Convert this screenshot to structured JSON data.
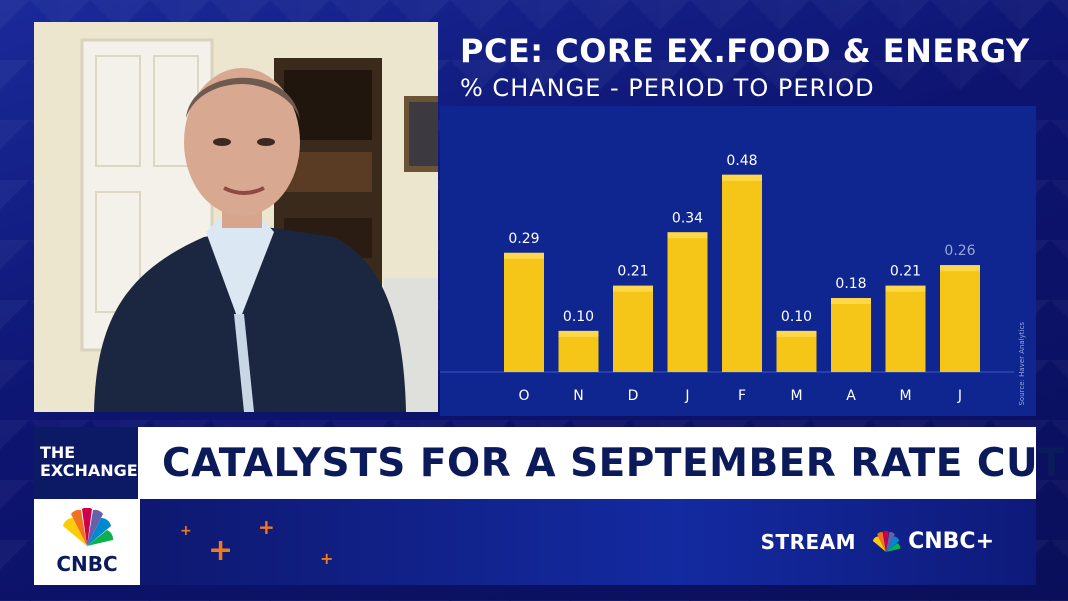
{
  "chart": {
    "title": "PCE: CORE EX.FOOD & ENERGY",
    "subtitle": "% CHANGE - PERIOD TO PERIOD",
    "source": "Source: Haver Analytics"
  },
  "chart_data": {
    "type": "bar",
    "title": "PCE: CORE EX.FOOD & ENERGY",
    "subtitle": "% CHANGE - PERIOD TO PERIOD",
    "categories": [
      "O",
      "N",
      "D",
      "J",
      "F",
      "M",
      "A",
      "M",
      "J"
    ],
    "values": [
      0.29,
      0.1,
      0.21,
      0.34,
      0.48,
      0.1,
      0.18,
      0.21,
      0.26
    ],
    "value_labels": [
      "0.29",
      "0.10",
      "0.21",
      "0.34",
      "0.48",
      "0.10",
      "0.18",
      "0.21",
      "0.26"
    ],
    "xlabel": "",
    "ylabel": "",
    "ylim": [
      0,
      0.55
    ],
    "grid": false,
    "bar_color": "#f5c518",
    "label_colors": [
      "#ffffff",
      "#ffffff",
      "#ffffff",
      "#ffffff",
      "#ffffff",
      "#ffffff",
      "#ffffff",
      "#ffffff",
      "#9aa7d8"
    ]
  },
  "lower_third": {
    "show_line1": "THE",
    "show_line2": "EXCHANGE",
    "headline": "CATALYSTS FOR A SEPTEMBER RATE CUT"
  },
  "branding": {
    "logo_text": "CNBC",
    "stream_label": "STREAM",
    "stream_brand": "CNBC+"
  },
  "colors": {
    "background": "#0d1470",
    "chart_bg": "#0f2590",
    "accent_orange": "#f07a1a",
    "headline_text": "#0b1a5a"
  }
}
